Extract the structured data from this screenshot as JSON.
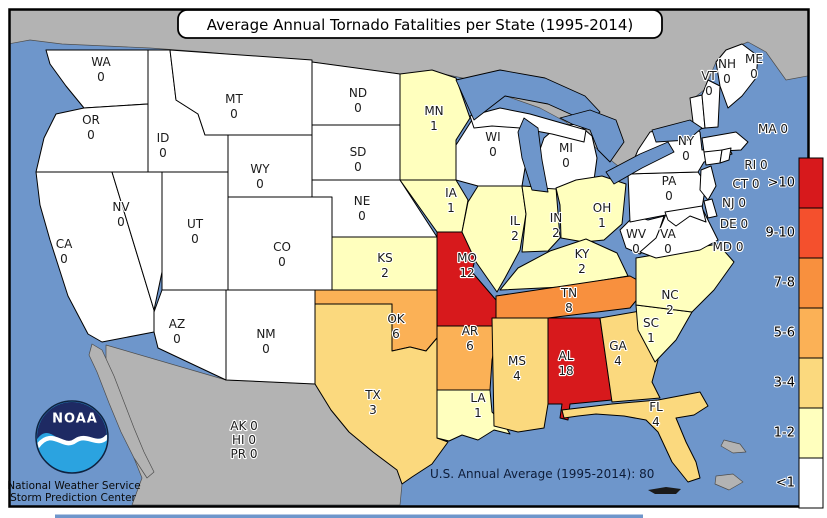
{
  "title": "Average Annual Tornado Fatalities per State (1995-2014)",
  "annotation": "U.S. Annual Average (1995-2014): 80",
  "non_contiguous": [
    "AK 0",
    "HI 0",
    "PR 0"
  ],
  "footer": {
    "logo_text": "NOAA",
    "line1": "National Weather Service",
    "line2": "Storm Prediction Center"
  },
  "legend": {
    "bins": [
      {
        "label": ">10",
        "color": "#D7191C"
      },
      {
        "label": "9-10",
        "color": "#F4502D"
      },
      {
        "label": "7-8",
        "color": "#F8903E"
      },
      {
        "label": "5-6",
        "color": "#FBB156"
      },
      {
        "label": "3-4",
        "color": "#FBD97E"
      },
      {
        "label": "1-2",
        "color": "#FFFFBE"
      },
      {
        "label": "<1",
        "color": "#FFFFFF"
      }
    ]
  },
  "colors": {
    "ocean": "#6E96CB",
    "neighbor_land": "#B3B3B3",
    "state_border": "#000000",
    "frame": "#000000"
  },
  "states": [
    {
      "abbr": "WA",
      "value": "0",
      "bin": 6
    },
    {
      "abbr": "OR",
      "value": "0",
      "bin": 6
    },
    {
      "abbr": "CA",
      "value": "0",
      "bin": 6
    },
    {
      "abbr": "NV",
      "value": "0",
      "bin": 6
    },
    {
      "abbr": "ID",
      "value": "0",
      "bin": 6
    },
    {
      "abbr": "MT",
      "value": "0",
      "bin": 6
    },
    {
      "abbr": "WY",
      "value": "0",
      "bin": 6
    },
    {
      "abbr": "UT",
      "value": "0",
      "bin": 6
    },
    {
      "abbr": "CO",
      "value": "0",
      "bin": 6
    },
    {
      "abbr": "AZ",
      "value": "0",
      "bin": 6
    },
    {
      "abbr": "NM",
      "value": "0",
      "bin": 6
    },
    {
      "abbr": "ND",
      "value": "0",
      "bin": 6
    },
    {
      "abbr": "SD",
      "value": "0",
      "bin": 6
    },
    {
      "abbr": "NE",
      "value": "0",
      "bin": 6
    },
    {
      "abbr": "KS",
      "value": "2",
      "bin": 5
    },
    {
      "abbr": "OK",
      "value": "6",
      "bin": 3
    },
    {
      "abbr": "TX",
      "value": "3",
      "bin": 4
    },
    {
      "abbr": "MN",
      "value": "1",
      "bin": 5
    },
    {
      "abbr": "IA",
      "value": "1",
      "bin": 5
    },
    {
      "abbr": "MO",
      "value": "12",
      "bin": 0
    },
    {
      "abbr": "AR",
      "value": "6",
      "bin": 3
    },
    {
      "abbr": "LA",
      "value": "1",
      "bin": 5
    },
    {
      "abbr": "WI",
      "value": "0",
      "bin": 6
    },
    {
      "abbr": "IL",
      "value": "2",
      "bin": 5
    },
    {
      "abbr": "IN",
      "value": "2",
      "bin": 5
    },
    {
      "abbr": "MI",
      "value": "0",
      "bin": 6
    },
    {
      "abbr": "OH",
      "value": "1",
      "bin": 5
    },
    {
      "abbr": "KY",
      "value": "2",
      "bin": 5
    },
    {
      "abbr": "TN",
      "value": "8",
      "bin": 2
    },
    {
      "abbr": "MS",
      "value": "4",
      "bin": 4
    },
    {
      "abbr": "AL",
      "value": "18",
      "bin": 0
    },
    {
      "abbr": "GA",
      "value": "4",
      "bin": 4
    },
    {
      "abbr": "FL",
      "value": "4",
      "bin": 4
    },
    {
      "abbr": "SC",
      "value": "1",
      "bin": 5
    },
    {
      "abbr": "NC",
      "value": "2",
      "bin": 5
    },
    {
      "abbr": "WV",
      "value": "0",
      "bin": 6
    },
    {
      "abbr": "VA",
      "value": "0",
      "bin": 6
    },
    {
      "abbr": "PA",
      "value": "0",
      "bin": 6
    },
    {
      "abbr": "NY",
      "value": "0",
      "bin": 6
    },
    {
      "abbr": "MD",
      "value": "0",
      "bin": 6
    },
    {
      "abbr": "DE",
      "value": "0",
      "bin": 6
    },
    {
      "abbr": "NJ",
      "value": "0",
      "bin": 6
    },
    {
      "abbr": "VT",
      "value": "0",
      "bin": 6
    },
    {
      "abbr": "NH",
      "value": "0",
      "bin": 6
    },
    {
      "abbr": "ME",
      "value": "0",
      "bin": 6
    },
    {
      "abbr": "MA",
      "value": "0",
      "bin": 6
    },
    {
      "abbr": "CT",
      "value": "0",
      "bin": 6
    },
    {
      "abbr": "RI",
      "value": "0",
      "bin": 6
    }
  ]
}
